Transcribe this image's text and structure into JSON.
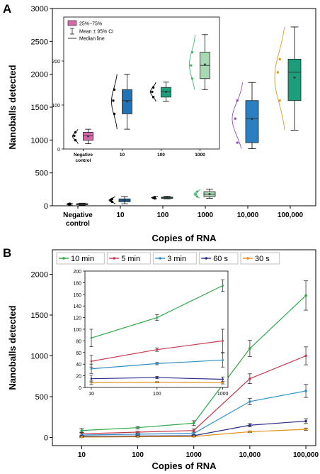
{
  "panel_a_label": "A",
  "panel_b_label": "B",
  "chart_data": [
    {
      "panel": "A",
      "type": "box",
      "xlabel": "Copies of RNA",
      "ylabel": "Nanoballs detected",
      "ylim": [
        0,
        3000
      ],
      "yticks": [
        0,
        500,
        1000,
        1500,
        2000,
        2500,
        3000
      ],
      "categories": [
        "Negative control",
        "10",
        "100",
        "1000",
        "10,000",
        "100,000"
      ],
      "box_colors": [
        "#d46aa9",
        "#1f74b8",
        "#1e9e7d",
        "#a7d9b2",
        "#2a7ec2",
        "#1a9f7a"
      ],
      "dist_colors": [
        "#000000",
        "#000000",
        "#000000",
        "#48b66f",
        "#8f4fb7",
        "#d99a2a"
      ],
      "boxes": [
        {
          "q1": 18,
          "median": 25,
          "q3": 32,
          "whislo": 10,
          "whishi": 40,
          "mean": 25
        },
        {
          "q1": 60,
          "median": 85,
          "q3": 105,
          "whislo": 30,
          "whishi": 140,
          "mean": 85
        },
        {
          "q1": 112,
          "median": 122,
          "q3": 132,
          "whislo": 105,
          "whishi": 145,
          "mean": 123
        },
        {
          "q1": 140,
          "median": 175,
          "q3": 215,
          "whislo": 115,
          "whishi": 255,
          "mean": 178
        },
        {
          "q1": 960,
          "median": 1325,
          "q3": 1600,
          "whislo": 870,
          "whishi": 1875,
          "mean": 1320
        },
        {
          "q1": 1600,
          "median": 2030,
          "q3": 2230,
          "whislo": 1150,
          "whishi": 2720,
          "mean": 1950
        }
      ],
      "inset": {
        "type": "box",
        "ylim": [
          0,
          300
        ],
        "yticks": [
          0,
          100,
          200
        ],
        "categories": [
          "Negative control",
          "10",
          "100",
          "1000"
        ],
        "legend": [
          "25%~75%",
          "Mean ± 95% CI",
          "Median line"
        ],
        "boxes": [
          {
            "q1": 20,
            "median": 30,
            "q3": 38,
            "whislo": 12,
            "whishi": 45,
            "mean": 29
          },
          {
            "q1": 80,
            "median": 110,
            "q3": 135,
            "whislo": 45,
            "whishi": 170,
            "mean": 108
          },
          {
            "q1": 118,
            "median": 130,
            "q3": 140,
            "whislo": 108,
            "whishi": 152,
            "mean": 130
          },
          {
            "q1": 160,
            "median": 190,
            "q3": 220,
            "whislo": 135,
            "whishi": 260,
            "mean": 192
          }
        ]
      }
    },
    {
      "panel": "B",
      "type": "line",
      "xscale": "log",
      "xlabel": "Copies of RNA",
      "ylabel": "Nanoballs detected",
      "ylim": [
        -100,
        2300
      ],
      "yticks": [
        0,
        500,
        1000,
        1500,
        2000
      ],
      "xticks": [
        10,
        100,
        1000,
        10000,
        100000
      ],
      "xticklabels": [
        "10",
        "100",
        "1000",
        "10,000",
        "100,000"
      ],
      "x": [
        10,
        100,
        1000,
        10000,
        100000
      ],
      "series": [
        {
          "name": "10 min",
          "color": "#2ea84a",
          "values": [
            85,
            120,
            175,
            1090,
            1740
          ],
          "err": [
            25,
            15,
            30,
            100,
            180
          ]
        },
        {
          "name": "5 min",
          "color": "#c9384d",
          "values": [
            45,
            65,
            85,
            720,
            1000
          ],
          "err": [
            20,
            10,
            20,
            60,
            110
          ]
        },
        {
          "name": "3 min",
          "color": "#2f91c8",
          "values": [
            30,
            40,
            50,
            440,
            570
          ],
          "err": [
            15,
            8,
            15,
            40,
            80
          ]
        },
        {
          "name": "60 s",
          "color": "#2b2f8a",
          "values": [
            15,
            18,
            22,
            150,
            200
          ],
          "err": [
            8,
            5,
            6,
            20,
            30
          ]
        },
        {
          "name": "30 s",
          "color": "#e0901d",
          "values": [
            5,
            8,
            12,
            70,
            100
          ],
          "err": [
            4,
            3,
            4,
            10,
            15
          ]
        }
      ],
      "inset": {
        "xscale": "log",
        "ylim": [
          0,
          200
        ],
        "yticks": [
          0,
          20,
          40,
          60,
          80,
          100,
          120,
          140,
          160,
          180,
          200
        ],
        "xticks": [
          10,
          100,
          1000
        ],
        "xticklabels": [
          "10",
          "100",
          "1000"
        ],
        "x": [
          10,
          100,
          1000
        ],
        "series": [
          {
            "name": "10 min",
            "values": [
              85,
              120,
              175
            ],
            "err": [
              15,
              5,
              10
            ]
          },
          {
            "name": "5 min",
            "values": [
              45,
              65,
              80
            ],
            "err": [
              10,
              3,
              20
            ]
          },
          {
            "name": "3 min",
            "values": [
              32,
              41,
              47
            ],
            "err": [
              8,
              2,
              12
            ]
          },
          {
            "name": "60 s",
            "values": [
              15,
              17,
              14
            ],
            "err": [
              6,
              2,
              4
            ]
          },
          {
            "name": "30 s",
            "values": [
              8,
              9,
              8
            ],
            "err": [
              3,
              1,
              2
            ]
          }
        ]
      }
    }
  ]
}
